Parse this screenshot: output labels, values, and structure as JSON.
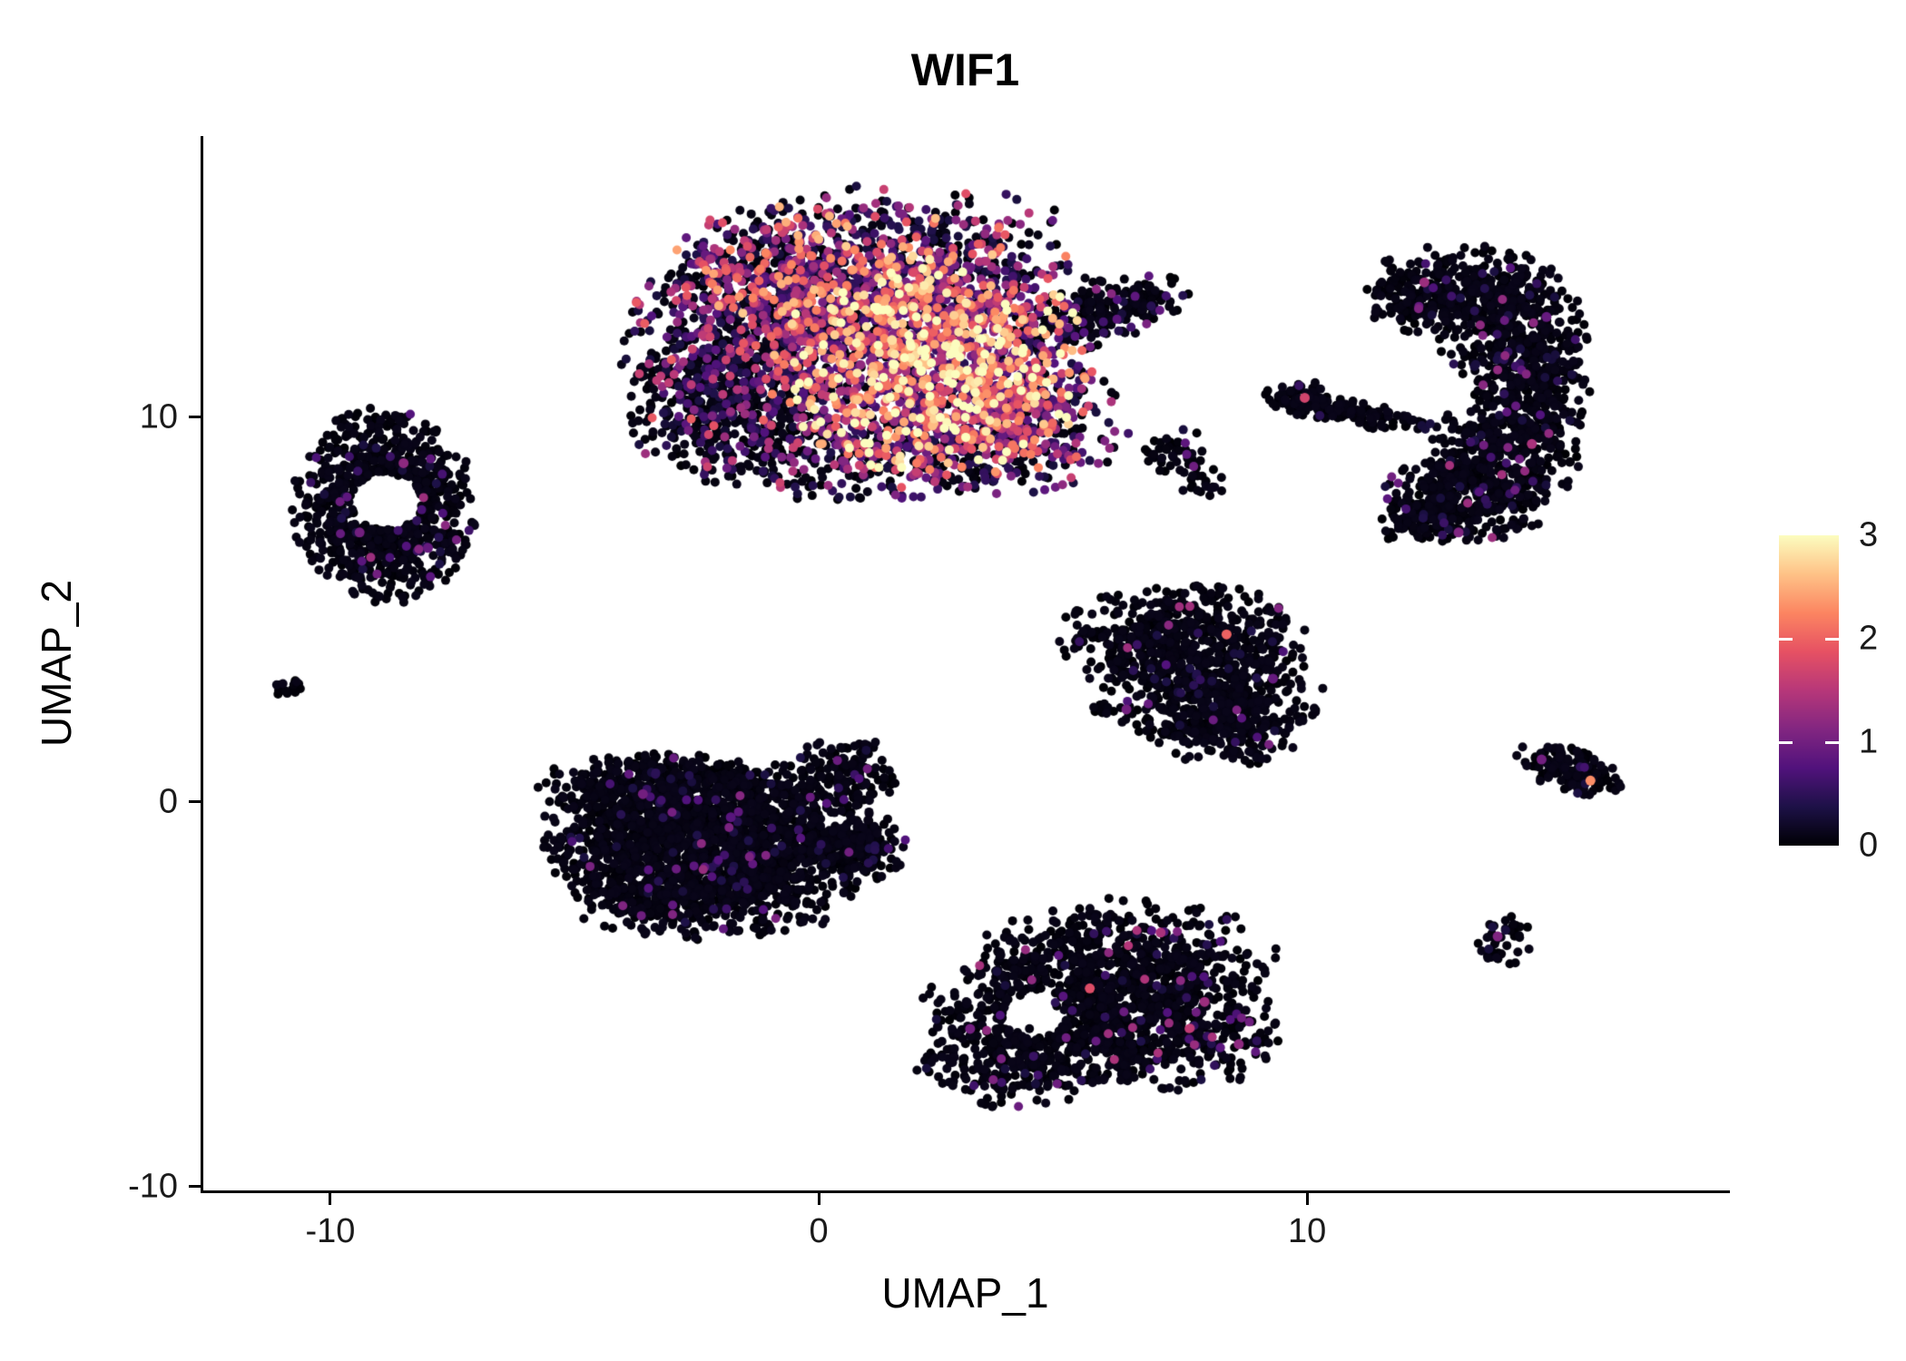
{
  "chart_data": {
    "type": "scatter",
    "title": "WIF1",
    "xlabel": "UMAP_1",
    "ylabel": "UMAP_2",
    "xlim": [
      -12.6,
      18.6
    ],
    "ylim": [
      -10.1,
      17.3
    ],
    "x_ticks": [
      -10,
      0,
      10
    ],
    "y_ticks": [
      10,
      0,
      -10
    ],
    "grid": false,
    "background": "#ffffff",
    "axis_color": "#000000",
    "legend_position": "right",
    "point_radius_px": 5,
    "colorbar": {
      "limits": [
        0,
        3
      ],
      "ticks": [
        3,
        2,
        1,
        0
      ]
    },
    "colorscale": {
      "name": "magma",
      "anchors": [
        {
          "t": 0.0,
          "color": "#000004"
        },
        {
          "t": 0.125,
          "color": "#1d1147"
        },
        {
          "t": 0.25,
          "color": "#51127c"
        },
        {
          "t": 0.375,
          "color": "#822681"
        },
        {
          "t": 0.5,
          "color": "#b73779"
        },
        {
          "t": 0.625,
          "color": "#e65163"
        },
        {
          "t": 0.75,
          "color": "#fc8561"
        },
        {
          "t": 0.875,
          "color": "#fec287"
        },
        {
          "t": 1.0,
          "color": "#fcfdbf"
        }
      ]
    },
    "clusters": [
      {
        "name": "top-center-high-expression",
        "blobs": [
          {
            "cx": 0.3,
            "cy": 13.6,
            "sx": 1.9,
            "sy": 1.05,
            "n": 900,
            "expr": [
              0.3,
              0.3,
              2.7,
              1.9
            ]
          },
          {
            "cx": 2.3,
            "cy": 11.3,
            "sx": 1.7,
            "sy": 1.45,
            "n": 1300,
            "expr": [
              0.1,
              0.4,
              3.3,
              1.25
            ]
          },
          {
            "cx": -1.3,
            "cy": 11.7,
            "sx": 1.4,
            "sy": 1.5,
            "n": 750,
            "expr": [
              0.52,
              0.3,
              2.0,
              2.2
            ]
          },
          {
            "cx": -2.1,
            "cy": 10.3,
            "sx": 0.95,
            "sy": 1.05,
            "n": 320,
            "expr": [
              0.82,
              0.25,
              1.4,
              2.2
            ]
          },
          {
            "cx": 3.9,
            "cy": 9.9,
            "sx": 1.25,
            "sy": 0.95,
            "n": 450,
            "expr": [
              0.36,
              0.3,
              2.4,
              1.9
            ]
          },
          {
            "cx": 0.9,
            "cy": 8.9,
            "sx": 1.7,
            "sy": 0.6,
            "n": 300,
            "expr": [
              0.58,
              0.3,
              2.0,
              2.2
            ]
          },
          {
            "cx": 5.7,
            "cy": 12.7,
            "sx": 1.0,
            "sy": 0.42,
            "rot": 18,
            "n": 240,
            "expr": [
              0.9,
              0.3,
              1.2,
              2.0
            ]
          },
          {
            "cx": 3.4,
            "cy": 13.7,
            "sx": 1.15,
            "sy": 0.85,
            "n": 180,
            "expr": [
              0.42,
              0.3,
              2.3,
              2.0
            ]
          },
          {
            "cx": 1.3,
            "cy": 15.1,
            "sx": 1.9,
            "sy": 0.5,
            "n": 70,
            "expr": [
              0.5,
              0.3,
              1.9,
              2.0
            ]
          }
        ],
        "accents": [
          [
            2.1,
            11.2,
            3.0
          ],
          [
            1.5,
            12.0,
            2.8
          ]
        ]
      },
      {
        "name": "left-ring",
        "blobs": [
          {
            "cx": -8.9,
            "cy": 7.7,
            "sx": 0.95,
            "sy": 1.3,
            "n": 800,
            "expr": [
              0.93,
              0.3,
              1.4,
              2.0
            ],
            "hole": [
              -8.85,
              7.8,
              0.72
            ]
          }
        ],
        "accents": [
          [
            -8.5,
            8.8,
            1.2
          ],
          [
            -9.4,
            7.0,
            1.0
          ],
          [
            -8.0,
            6.6,
            0.9
          ]
        ]
      },
      {
        "name": "tiny-far-left",
        "blobs": [
          {
            "cx": -10.85,
            "cy": 2.95,
            "sx": 0.15,
            "sy": 0.2,
            "n": 14,
            "expr": [
              0.995,
              0.3,
              0.6,
              2.0
            ]
          }
        ]
      },
      {
        "name": "center-left",
        "blobs": [
          {
            "cx": -3.0,
            "cy": -0.9,
            "sx": 1.35,
            "sy": 1.1,
            "n": 1250,
            "expr": [
              0.965,
              0.3,
              1.3,
              2.0
            ]
          },
          {
            "cx": -0.6,
            "cy": -0.9,
            "sx": 1.0,
            "sy": 0.95,
            "n": 550,
            "expr": [
              0.96,
              0.3,
              1.3,
              2.0
            ]
          },
          {
            "cx": -3.3,
            "cy": 0.4,
            "sx": 1.25,
            "sy": 0.45,
            "n": 260,
            "expr": [
              0.96,
              0.3,
              1.2,
              2.0
            ]
          },
          {
            "cx": -2.2,
            "cy": -2.5,
            "sx": 1.5,
            "sy": 0.55,
            "n": 350,
            "expr": [
              0.97,
              0.3,
              1.2,
              2.0
            ]
          },
          {
            "cx": 0.6,
            "cy": 0.8,
            "sx": 0.55,
            "sy": 0.5,
            "n": 130,
            "expr": [
              0.95,
              0.3,
              1.1,
              2.0
            ]
          },
          {
            "cx": 0.9,
            "cy": -1.2,
            "sx": 0.5,
            "sy": 0.45,
            "n": 140,
            "expr": [
              0.96,
              0.3,
              1.1,
              2.0
            ]
          }
        ],
        "accents": [
          [
            -3.6,
            0.2,
            1.0
          ],
          [
            -1.8,
            -0.4,
            0.8
          ]
        ]
      },
      {
        "name": "mid-right-triangle",
        "blobs": [
          {
            "cx": 7.4,
            "cy": 4.3,
            "sx": 1.3,
            "sy": 0.7,
            "n": 430,
            "expr": [
              0.955,
              0.3,
              1.4,
              2.0
            ]
          },
          {
            "cx": 7.9,
            "cy": 3.0,
            "sx": 1.25,
            "sy": 0.8,
            "n": 470,
            "expr": [
              0.96,
              0.3,
              1.4,
              2.0
            ]
          },
          {
            "cx": 8.3,
            "cy": 1.9,
            "sx": 0.85,
            "sy": 0.5,
            "n": 190,
            "expr": [
              0.96,
              0.3,
              1.2,
              2.0
            ]
          }
        ],
        "accents": [
          [
            8.35,
            4.35,
            2.0
          ],
          [
            6.3,
            2.4,
            1.0
          ],
          [
            9.3,
            3.2,
            0.9
          ]
        ]
      },
      {
        "name": "bottom-center",
        "blobs": [
          {
            "cx": 6.3,
            "cy": -4.0,
            "sx": 1.55,
            "sy": 0.75,
            "n": 500,
            "expr": [
              0.94,
              0.3,
              1.5,
              2.0
            ]
          },
          {
            "cx": 4.9,
            "cy": -5.6,
            "sx": 1.45,
            "sy": 0.95,
            "n": 540,
            "expr": [
              0.94,
              0.3,
              1.5,
              2.0
            ],
            "hole": [
              4.4,
              -5.5,
              0.62
            ]
          },
          {
            "cx": 7.3,
            "cy": -5.9,
            "sx": 1.1,
            "sy": 0.85,
            "n": 420,
            "expr": [
              0.93,
              0.3,
              1.6,
              2.0
            ]
          },
          {
            "cx": 3.9,
            "cy": -6.9,
            "sx": 0.95,
            "sy": 0.55,
            "n": 190,
            "expr": [
              0.94,
              0.3,
              1.3,
              2.0
            ]
          }
        ],
        "accents": [
          [
            5.55,
            -4.85,
            1.8
          ],
          [
            7.9,
            -5.2,
            1.3
          ],
          [
            3.1,
            -5.9,
            1.0
          ],
          [
            8.6,
            -6.3,
            1.2
          ],
          [
            7.0,
            -3.4,
            1.4
          ]
        ]
      },
      {
        "name": "right-crescent",
        "blobs": [
          {
            "cx": 13.2,
            "cy": 13.4,
            "sx": 1.0,
            "sy": 0.55,
            "n": 280,
            "expr": [
              0.95,
              0.3,
              1.3,
              2.0
            ]
          },
          {
            "cx": 12.2,
            "cy": 13.0,
            "sx": 0.5,
            "sy": 0.4,
            "n": 90,
            "expr": [
              0.95,
              0.3,
              1.2,
              2.0
            ]
          },
          {
            "cx": 14.2,
            "cy": 12.2,
            "sx": 0.8,
            "sy": 0.75,
            "n": 310,
            "expr": [
              0.95,
              0.3,
              1.3,
              2.0
            ]
          },
          {
            "cx": 14.5,
            "cy": 10.6,
            "sx": 0.65,
            "sy": 0.85,
            "n": 280,
            "expr": [
              0.95,
              0.3,
              1.3,
              2.0
            ]
          },
          {
            "cx": 14.0,
            "cy": 9.0,
            "sx": 0.8,
            "sy": 0.75,
            "n": 300,
            "expr": [
              0.94,
              0.3,
              1.4,
              2.0
            ]
          },
          {
            "cx": 13.3,
            "cy": 7.9,
            "sx": 0.9,
            "sy": 0.6,
            "n": 300,
            "expr": [
              0.94,
              0.3,
              1.4,
              2.0
            ]
          },
          {
            "cx": 12.35,
            "cy": 7.3,
            "sx": 0.5,
            "sy": 0.35,
            "n": 90,
            "expr": [
              0.95,
              0.3,
              1.2,
              2.0
            ]
          }
        ],
        "accents": [
          [
            12.4,
            13.5,
            1.3
          ],
          [
            14.6,
            9.3,
            1.4
          ],
          [
            13.1,
            7.0,
            1.1
          ],
          [
            14.9,
            12.6,
            0.9
          ]
        ]
      },
      {
        "name": "small-upper-middle",
        "blobs": [
          {
            "cx": 7.3,
            "cy": 9.1,
            "sx": 0.38,
            "sy": 0.32,
            "n": 45,
            "expr": [
              0.95,
              0.3,
              1.1,
              2.0
            ]
          },
          {
            "cx": 7.9,
            "cy": 8.3,
            "sx": 0.26,
            "sy": 0.2,
            "n": 20,
            "expr": [
              0.95,
              0.3,
              1.0,
              2.0
            ]
          }
        ]
      },
      {
        "name": "small-diagonal-strip",
        "blobs": [
          {
            "cx": 10.8,
            "cy": 10.15,
            "sx": 1.05,
            "sy": 0.17,
            "rot": -13,
            "n": 140,
            "expr": [
              0.96,
              0.3,
              1.2,
              2.0
            ]
          },
          {
            "cx": 9.9,
            "cy": 10.5,
            "sx": 0.28,
            "sy": 0.26,
            "n": 45,
            "expr": [
              0.95,
              0.3,
              1.2,
              2.0
            ]
          }
        ],
        "accents": [
          [
            9.95,
            10.5,
            1.7
          ]
        ]
      },
      {
        "name": "small-right-strip",
        "blobs": [
          {
            "cx": 15.35,
            "cy": 0.85,
            "sx": 0.6,
            "sy": 0.28,
            "rot": -22,
            "n": 150,
            "expr": [
              0.94,
              0.3,
              1.3,
              2.0
            ]
          }
        ],
        "accents": [
          [
            15.8,
            0.55,
            2.3
          ],
          [
            14.8,
            1.1,
            1.0
          ]
        ]
      },
      {
        "name": "tiny-bottom-right",
        "blobs": [
          {
            "cx": 14.0,
            "cy": -3.6,
            "sx": 0.32,
            "sy": 0.36,
            "n": 40,
            "expr": [
              0.93,
              0.3,
              1.2,
              2.0
            ]
          }
        ],
        "accents": [
          [
            13.9,
            -3.5,
            1.1
          ]
        ]
      }
    ]
  }
}
